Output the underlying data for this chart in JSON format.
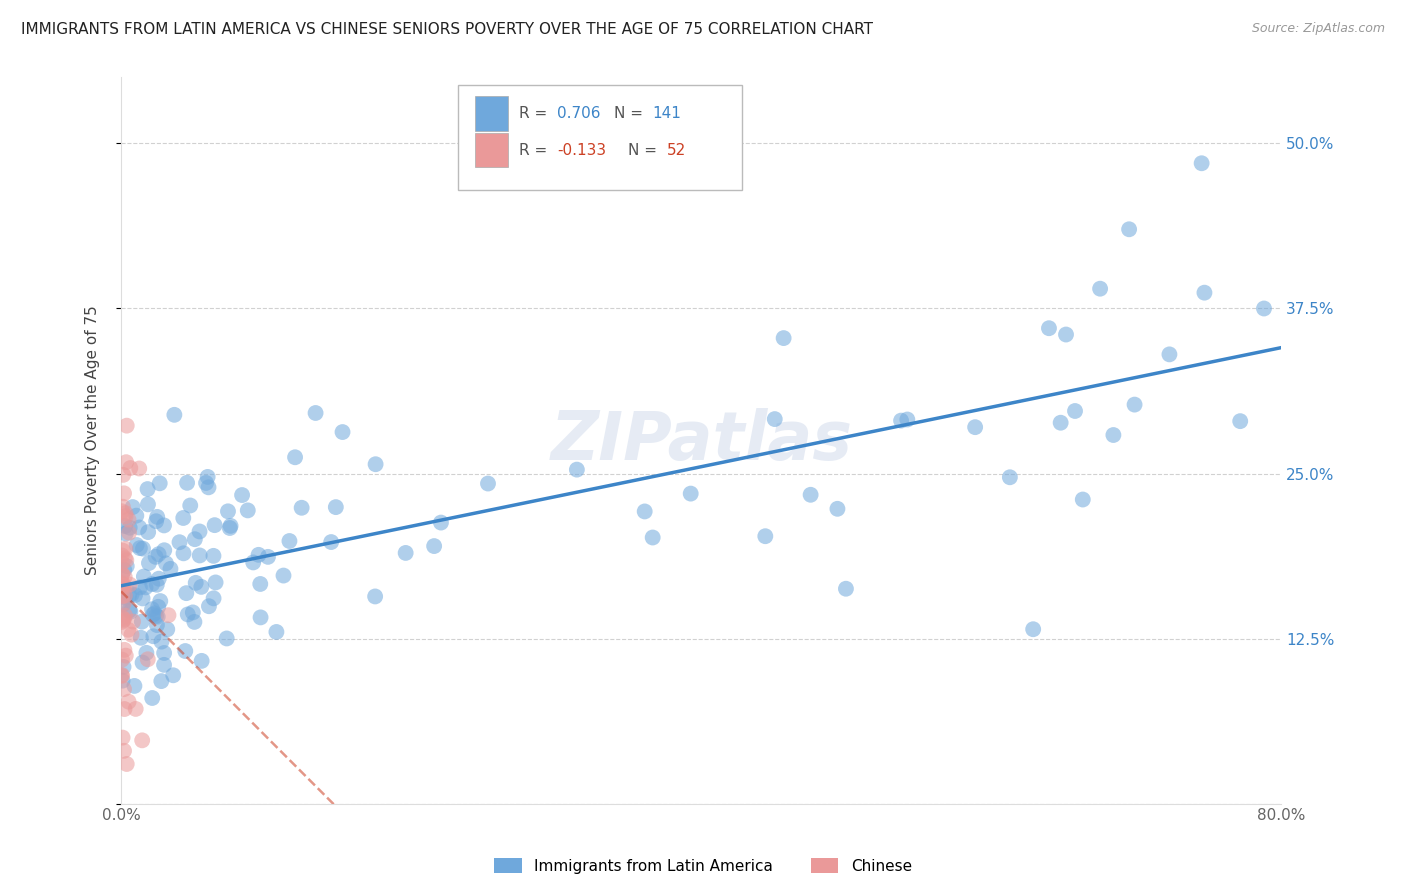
{
  "title": "IMMIGRANTS FROM LATIN AMERICA VS CHINESE SENIORS POVERTY OVER THE AGE OF 75 CORRELATION CHART",
  "source": "Source: ZipAtlas.com",
  "ylabel": "Seniors Poverty Over the Age of 75",
  "xlabel_latin": "Immigrants from Latin America",
  "xlabel_chinese": "Chinese",
  "xlim": [
    0.0,
    0.8
  ],
  "ylim": [
    0.0,
    0.55
  ],
  "xticks": [
    0.0,
    0.1,
    0.2,
    0.3,
    0.4,
    0.5,
    0.6,
    0.7,
    0.8
  ],
  "xticklabels": [
    "0.0%",
    "",
    "",
    "",
    "",
    "",
    "",
    "",
    "80.0%"
  ],
  "yticks": [
    0.0,
    0.125,
    0.25,
    0.375,
    0.5
  ],
  "yticklabels_right": [
    "",
    "12.5%",
    "25.0%",
    "37.5%",
    "50.0%"
  ],
  "legend_r_latin": "0.706",
  "legend_n_latin": "141",
  "legend_r_chinese": "-0.133",
  "legend_n_chinese": "52",
  "color_latin": "#6fa8dc",
  "color_chinese": "#ea9999",
  "color_latin_line": "#3d85c8",
  "color_chinese_line": "#cc4125",
  "watermark": "ZIPatlas",
  "grid_color": "#cccccc",
  "background_color": "#ffffff",
  "title_fontsize": 11,
  "axis_label_fontsize": 11,
  "tick_fontsize": 11,
  "legend_fontsize": 11,
  "watermark_fontsize": 48,
  "watermark_color": "#c8d4e8",
  "watermark_alpha": 0.45,
  "latin_seed": 7,
  "chinese_seed": 15
}
